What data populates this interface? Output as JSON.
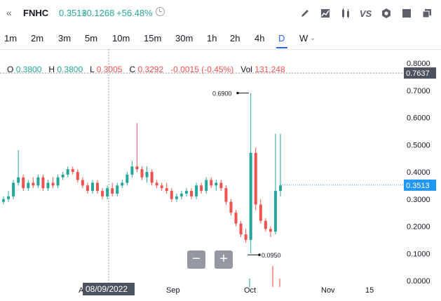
{
  "header": {
    "back_icon": "double-chevron-left-icon",
    "symbol": "FNHC",
    "price": "0.3513",
    "change": "+0.1268",
    "change_pct": "+56.48%",
    "tools": [
      "pencil-icon",
      "area-chart-icon",
      "candles-icon",
      "compare-vs-icon",
      "settings-gear-icon",
      "fullscreen-icon",
      "copy-icon"
    ],
    "vs_label": "VS"
  },
  "timeframes": [
    "1m",
    "2m",
    "3m",
    "5m",
    "10m",
    "15m",
    "30m",
    "1h",
    "2h",
    "4h",
    "D",
    "W"
  ],
  "timeframe_active": "D",
  "ohlc": {
    "o_label": "O",
    "o": "0.3800",
    "h_label": "H",
    "h": "0.3800",
    "l_label": "L",
    "l": "0.3005",
    "c_label": "C",
    "c": "0.3292",
    "change": "-0.0015 (-0.45%)",
    "vol_label": "Vol",
    "vol": "131,248"
  },
  "colors": {
    "up": "#26a69a",
    "down": "#ef5350",
    "accent": "#2962ff",
    "label_bg": "#2196f3"
  },
  "chart_data": {
    "type": "candlestick",
    "y_ticks": [
      "0.8000",
      "0.7000",
      "0.6000",
      "0.5000",
      "0.4000",
      "0.3000",
      "0.2000",
      "0.1000",
      "0.0000"
    ],
    "ylim": [
      0,
      0.8
    ],
    "x_ticks": [
      "Aug",
      "Sep",
      "Oct",
      "Nov",
      "15"
    ],
    "crosshair_date": "08/09/2022",
    "crosshair_price": "0.7637",
    "last_price": "0.3513",
    "high_marker": "0.6900",
    "low_marker": "0.0950",
    "candles": [
      [
        0.29,
        0.31,
        0.28,
        0.3
      ],
      [
        0.3,
        0.33,
        0.29,
        0.31
      ],
      [
        0.31,
        0.37,
        0.3,
        0.36
      ],
      [
        0.36,
        0.48,
        0.35,
        0.38
      ],
      [
        0.38,
        0.39,
        0.33,
        0.34
      ],
      [
        0.34,
        0.37,
        0.33,
        0.36
      ],
      [
        0.36,
        0.38,
        0.34,
        0.35
      ],
      [
        0.35,
        0.39,
        0.34,
        0.38
      ],
      [
        0.38,
        0.39,
        0.33,
        0.34
      ],
      [
        0.34,
        0.37,
        0.33,
        0.36
      ],
      [
        0.36,
        0.38,
        0.34,
        0.35
      ],
      [
        0.35,
        0.39,
        0.34,
        0.38
      ],
      [
        0.38,
        0.4,
        0.37,
        0.39
      ],
      [
        0.39,
        0.42,
        0.38,
        0.41
      ],
      [
        0.41,
        0.42,
        0.39,
        0.4
      ],
      [
        0.4,
        0.41,
        0.36,
        0.37
      ],
      [
        0.37,
        0.38,
        0.34,
        0.35
      ],
      [
        0.35,
        0.36,
        0.32,
        0.33
      ],
      [
        0.33,
        0.37,
        0.32,
        0.36
      ],
      [
        0.36,
        0.37,
        0.32,
        0.33
      ],
      [
        0.33,
        0.34,
        0.3,
        0.31
      ],
      [
        0.31,
        0.35,
        0.3,
        0.34
      ],
      [
        0.34,
        0.36,
        0.31,
        0.32
      ],
      [
        0.32,
        0.36,
        0.31,
        0.35
      ],
      [
        0.35,
        0.37,
        0.34,
        0.36
      ],
      [
        0.36,
        0.4,
        0.35,
        0.39
      ],
      [
        0.39,
        0.44,
        0.38,
        0.42
      ],
      [
        0.42,
        0.58,
        0.4,
        0.41
      ],
      [
        0.41,
        0.42,
        0.37,
        0.38
      ],
      [
        0.38,
        0.42,
        0.36,
        0.4
      ],
      [
        0.4,
        0.41,
        0.35,
        0.36
      ],
      [
        0.36,
        0.37,
        0.34,
        0.35
      ],
      [
        0.35,
        0.36,
        0.33,
        0.34
      ],
      [
        0.34,
        0.36,
        0.32,
        0.33
      ],
      [
        0.33,
        0.34,
        0.29,
        0.3
      ],
      [
        0.3,
        0.32,
        0.29,
        0.31
      ],
      [
        0.31,
        0.33,
        0.3,
        0.32
      ],
      [
        0.32,
        0.34,
        0.31,
        0.33
      ],
      [
        0.33,
        0.34,
        0.3,
        0.31
      ],
      [
        0.31,
        0.36,
        0.3,
        0.35
      ],
      [
        0.35,
        0.36,
        0.32,
        0.33
      ],
      [
        0.33,
        0.38,
        0.32,
        0.37
      ],
      [
        0.37,
        0.38,
        0.34,
        0.35
      ],
      [
        0.35,
        0.37,
        0.33,
        0.36
      ],
      [
        0.36,
        0.37,
        0.33,
        0.34
      ],
      [
        0.34,
        0.35,
        0.28,
        0.29
      ],
      [
        0.29,
        0.3,
        0.24,
        0.25
      ],
      [
        0.25,
        0.26,
        0.2,
        0.21
      ],
      [
        0.21,
        0.22,
        0.16,
        0.17
      ],
      [
        0.17,
        0.19,
        0.14,
        0.15
      ],
      [
        0.15,
        0.69,
        0.1,
        0.47
      ],
      [
        0.47,
        0.49,
        0.26,
        0.28
      ],
      [
        0.28,
        0.3,
        0.21,
        0.22
      ],
      [
        0.22,
        0.23,
        0.18,
        0.19
      ],
      [
        0.19,
        0.2,
        0.16,
        0.18
      ],
      [
        0.18,
        0.54,
        0.17,
        0.33
      ],
      [
        0.33,
        0.54,
        0.31,
        0.35
      ]
    ]
  }
}
